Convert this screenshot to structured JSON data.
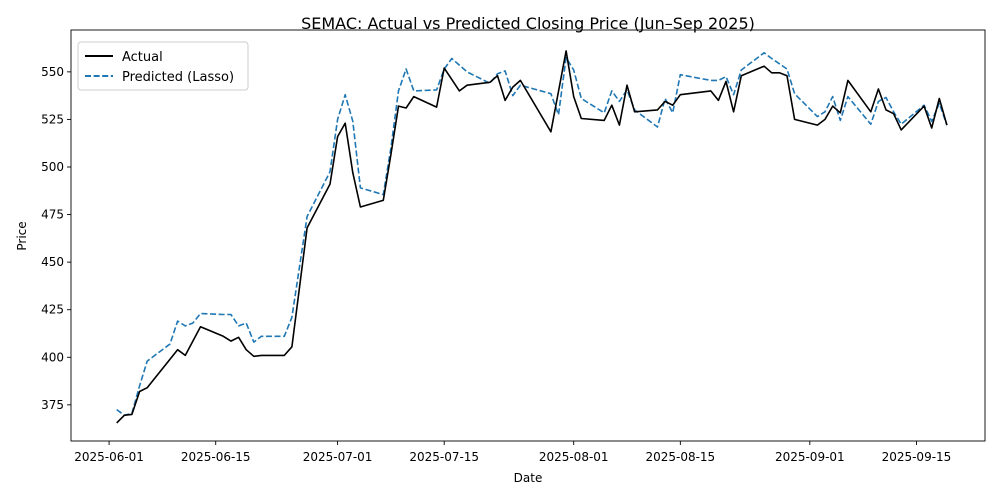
{
  "chart_data": {
    "type": "line",
    "title": "SEMAC: Actual vs Predicted Closing Price (Jun–Sep 2025)",
    "xlabel": "Date",
    "ylabel": "Price",
    "xlim": [
      "2025-05-27",
      "2025-09-24"
    ],
    "ylim": [
      356,
      572
    ],
    "x_ticks": [
      "2025-06-01",
      "2025-06-15",
      "2025-07-01",
      "2025-07-15",
      "2025-08-01",
      "2025-08-15",
      "2025-09-01",
      "2025-09-15"
    ],
    "y_ticks": [
      375,
      400,
      425,
      450,
      475,
      500,
      525,
      550
    ],
    "grid": false,
    "legend": {
      "position": "top-left"
    },
    "series": [
      {
        "name": "Actual",
        "color": "#000000",
        "style": "solid",
        "points": [
          [
            "2025-06-02",
            365.5
          ],
          [
            "2025-06-03",
            369.5
          ],
          [
            "2025-06-04",
            370
          ],
          [
            "2025-06-05",
            382
          ],
          [
            "2025-06-06",
            384
          ],
          [
            "2025-06-09",
            399
          ],
          [
            "2025-06-10",
            404
          ],
          [
            "2025-06-11",
            401
          ],
          [
            "2025-06-13",
            416
          ],
          [
            "2025-06-16",
            411
          ],
          [
            "2025-06-17",
            408.5
          ],
          [
            "2025-06-18",
            410.5
          ],
          [
            "2025-06-19",
            404
          ],
          [
            "2025-06-20",
            400.5
          ],
          [
            "2025-06-21",
            401
          ],
          [
            "2025-06-24",
            401
          ],
          [
            "2025-06-25",
            405.5
          ],
          [
            "2025-06-27",
            468
          ],
          [
            "2025-06-30",
            491
          ],
          [
            "2025-07-01",
            516
          ],
          [
            "2025-07-02",
            523
          ],
          [
            "2025-07-03",
            497
          ],
          [
            "2025-07-04",
            479
          ],
          [
            "2025-07-07",
            482.5
          ],
          [
            "2025-07-08",
            506.5
          ],
          [
            "2025-07-09",
            532
          ],
          [
            "2025-07-10",
            531
          ],
          [
            "2025-07-11",
            537
          ],
          [
            "2025-07-14",
            531.5
          ],
          [
            "2025-07-15",
            552
          ],
          [
            "2025-07-17",
            540
          ],
          [
            "2025-07-18",
            543
          ],
          [
            "2025-07-21",
            544.5
          ],
          [
            "2025-07-22",
            548
          ],
          [
            "2025-07-23",
            535
          ],
          [
            "2025-07-24",
            542
          ],
          [
            "2025-07-25",
            545.5
          ],
          [
            "2025-07-29",
            518.5
          ],
          [
            "2025-07-31",
            561
          ],
          [
            "2025-08-01",
            537
          ],
          [
            "2025-08-02",
            525.5
          ],
          [
            "2025-08-05",
            524.5
          ],
          [
            "2025-08-06",
            532.5
          ],
          [
            "2025-08-07",
            522
          ],
          [
            "2025-08-08",
            543
          ],
          [
            "2025-08-09",
            529
          ],
          [
            "2025-08-12",
            530
          ],
          [
            "2025-08-13",
            534.5
          ],
          [
            "2025-08-14",
            532.5
          ],
          [
            "2025-08-15",
            538
          ],
          [
            "2025-08-19",
            540
          ],
          [
            "2025-08-20",
            535
          ],
          [
            "2025-08-21",
            545
          ],
          [
            "2025-08-22",
            529
          ],
          [
            "2025-08-23",
            548
          ],
          [
            "2025-08-26",
            553
          ],
          [
            "2025-08-27",
            549.5
          ],
          [
            "2025-08-28",
            549.5
          ],
          [
            "2025-08-29",
            548
          ],
          [
            "2025-08-30",
            525
          ],
          [
            "2025-09-02",
            522
          ],
          [
            "2025-09-03",
            525
          ],
          [
            "2025-09-04",
            532
          ],
          [
            "2025-09-05",
            528.5
          ],
          [
            "2025-09-06",
            545.5
          ],
          [
            "2025-09-09",
            529
          ],
          [
            "2025-09-10",
            541
          ],
          [
            "2025-09-11",
            530
          ],
          [
            "2025-09-12",
            528
          ],
          [
            "2025-09-13",
            519.5
          ],
          [
            "2025-09-16",
            532
          ],
          [
            "2025-09-17",
            520.5
          ],
          [
            "2025-09-18",
            536
          ],
          [
            "2025-09-19",
            522
          ]
        ]
      },
      {
        "name": "Predicted (Lasso)",
        "color": "#1f77b4",
        "style": "dashed",
        "points": [
          [
            "2025-06-02",
            372.5
          ],
          [
            "2025-06-03",
            369.5
          ],
          [
            "2025-06-04",
            370.5
          ],
          [
            "2025-06-05",
            385
          ],
          [
            "2025-06-06",
            398
          ],
          [
            "2025-06-09",
            407
          ],
          [
            "2025-06-10",
            419
          ],
          [
            "2025-06-11",
            416.5
          ],
          [
            "2025-06-12",
            418
          ],
          [
            "2025-06-13",
            423
          ],
          [
            "2025-06-16",
            422.5
          ],
          [
            "2025-06-17",
            422.5
          ],
          [
            "2025-06-18",
            416.5
          ],
          [
            "2025-06-19",
            418
          ],
          [
            "2025-06-20",
            408
          ],
          [
            "2025-06-21",
            411
          ],
          [
            "2025-06-24",
            411
          ],
          [
            "2025-06-25",
            421
          ],
          [
            "2025-06-27",
            474
          ],
          [
            "2025-06-30",
            497.5
          ],
          [
            "2025-07-01",
            525
          ],
          [
            "2025-07-02",
            538
          ],
          [
            "2025-07-03",
            524
          ],
          [
            "2025-07-04",
            489
          ],
          [
            "2025-07-07",
            485.5
          ],
          [
            "2025-07-08",
            510
          ],
          [
            "2025-07-09",
            540
          ],
          [
            "2025-07-10",
            551.5
          ],
          [
            "2025-07-11",
            540
          ],
          [
            "2025-07-14",
            540.5
          ],
          [
            "2025-07-15",
            551.5
          ],
          [
            "2025-07-16",
            557
          ],
          [
            "2025-07-18",
            550
          ],
          [
            "2025-07-21",
            544
          ],
          [
            "2025-07-22",
            549
          ],
          [
            "2025-07-23",
            550.5
          ],
          [
            "2025-07-24",
            537.5
          ],
          [
            "2025-07-25",
            543
          ],
          [
            "2025-07-29",
            538.5
          ],
          [
            "2025-07-30",
            527.5
          ],
          [
            "2025-07-31",
            557.5
          ],
          [
            "2025-08-01",
            551
          ],
          [
            "2025-08-02",
            536
          ],
          [
            "2025-08-05",
            528.5
          ],
          [
            "2025-08-06",
            540
          ],
          [
            "2025-08-07",
            534.5
          ],
          [
            "2025-08-08",
            540.5
          ],
          [
            "2025-08-09",
            530
          ],
          [
            "2025-08-12",
            521
          ],
          [
            "2025-08-13",
            536
          ],
          [
            "2025-08-14",
            528.5
          ],
          [
            "2025-08-15",
            548.5
          ],
          [
            "2025-08-19",
            545.5
          ],
          [
            "2025-08-20",
            545.5
          ],
          [
            "2025-08-21",
            547.5
          ],
          [
            "2025-08-22",
            538
          ],
          [
            "2025-08-23",
            551
          ],
          [
            "2025-08-26",
            560
          ],
          [
            "2025-08-27",
            557
          ],
          [
            "2025-08-29",
            551.5
          ],
          [
            "2025-08-30",
            538.5
          ],
          [
            "2025-09-02",
            526.5
          ],
          [
            "2025-09-03",
            529
          ],
          [
            "2025-09-04",
            537
          ],
          [
            "2025-09-05",
            524.5
          ],
          [
            "2025-09-06",
            537
          ],
          [
            "2025-09-09",
            522.5
          ],
          [
            "2025-09-10",
            534.5
          ],
          [
            "2025-09-11",
            536.5
          ],
          [
            "2025-09-12",
            529
          ],
          [
            "2025-09-13",
            522.5
          ],
          [
            "2025-09-16",
            532.5
          ],
          [
            "2025-09-17",
            524
          ],
          [
            "2025-09-18",
            533.5
          ],
          [
            "2025-09-19",
            522
          ]
        ]
      }
    ]
  }
}
